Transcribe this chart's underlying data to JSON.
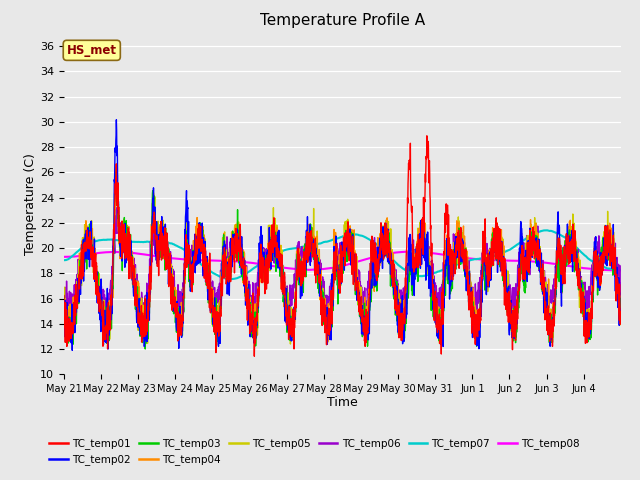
{
  "title": "Temperature Profile A",
  "xlabel": "Time",
  "ylabel": "Temperature (C)",
  "ylim": [
    10,
    37
  ],
  "yticks": [
    10,
    12,
    14,
    16,
    18,
    20,
    22,
    24,
    26,
    28,
    30,
    32,
    34,
    36
  ],
  "annotation": "HS_met",
  "annotation_color": "#8B0000",
  "annotation_bg": "#FFFF99",
  "annotation_edge": "#8B6914",
  "series_colors": {
    "TC_temp01": "#FF0000",
    "TC_temp02": "#0000FF",
    "TC_temp03": "#00CC00",
    "TC_temp04": "#FF8C00",
    "TC_temp05": "#CCCC00",
    "TC_temp06": "#9900CC",
    "TC_temp07": "#00CCCC",
    "TC_temp08": "#FF00FF"
  },
  "background_color": "#E8E8E8",
  "n_days": 15,
  "start_day": 21,
  "start_month": "May"
}
